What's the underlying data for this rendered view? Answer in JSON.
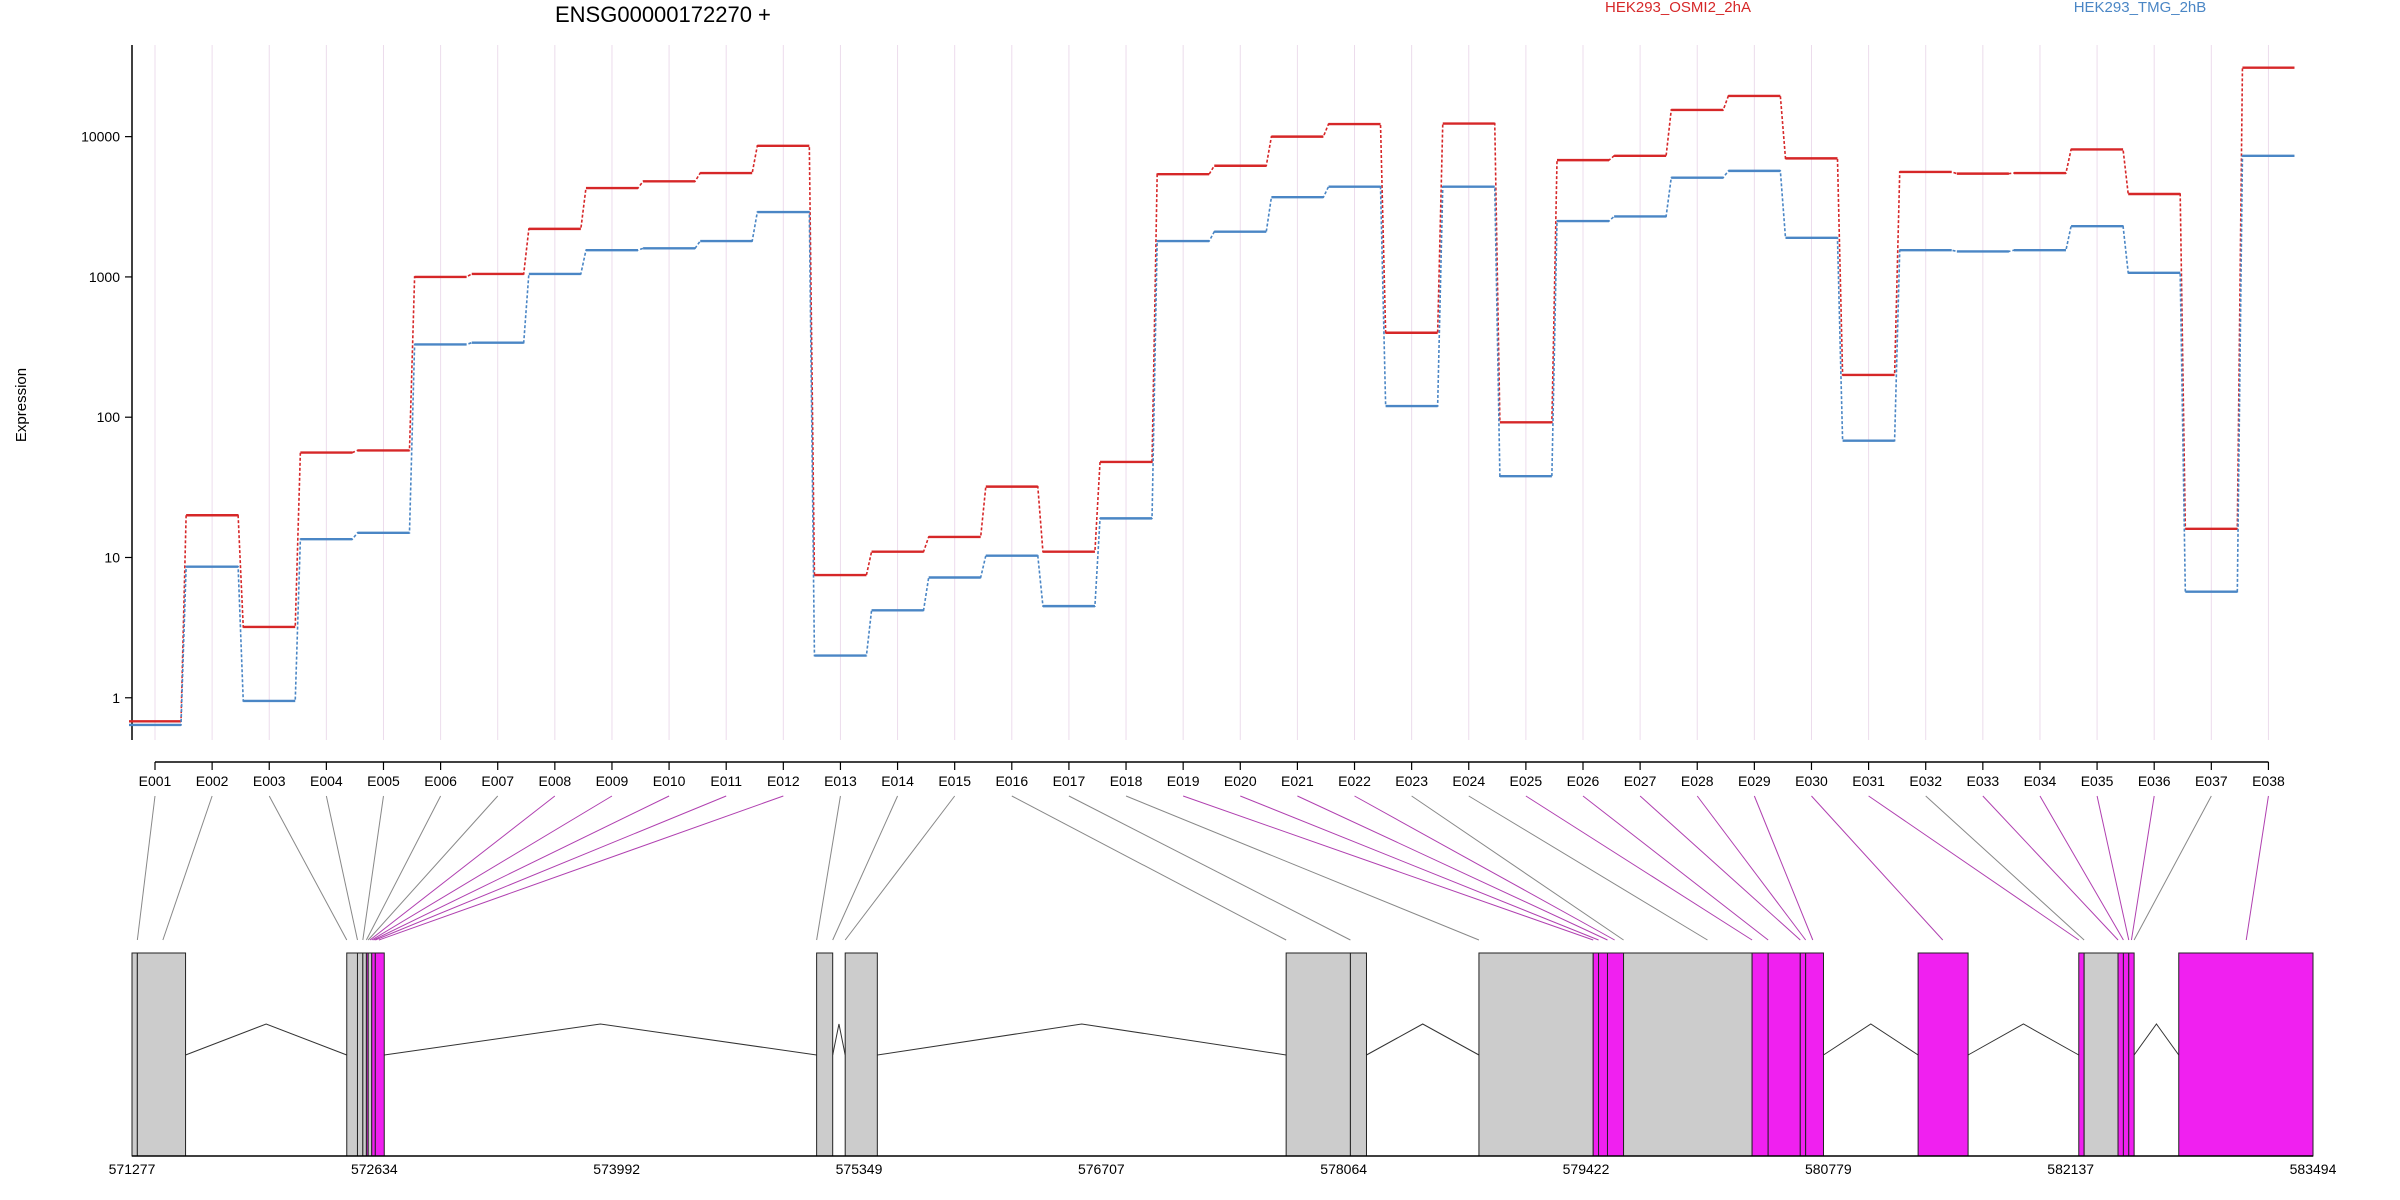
{
  "chart_data": {
    "type": "line",
    "title": "ENSG00000172270 +",
    "ylabel": "Expression",
    "yscale": "log",
    "ylim": [
      0.5,
      45000
    ],
    "yticks": [
      1,
      10,
      100,
      1000,
      10000
    ],
    "ytick_labels": [
      "1",
      "10",
      "100",
      "1000",
      "10000"
    ],
    "categories": [
      "E001",
      "E002",
      "E003",
      "E004",
      "E005",
      "E006",
      "E007",
      "E008",
      "E009",
      "E010",
      "E011",
      "E012",
      "E013",
      "E014",
      "E015",
      "E016",
      "E017",
      "E018",
      "E019",
      "E020",
      "E021",
      "E022",
      "E023",
      "E024",
      "E025",
      "E026",
      "E027",
      "E028",
      "E029",
      "E030",
      "E031",
      "E032",
      "E033",
      "E034",
      "E035",
      "E036",
      "E037",
      "E038"
    ],
    "series": [
      {
        "name": "HEK293_OSMI2_2hA",
        "color": "#d62728",
        "values": [
          0.68,
          20,
          3.2,
          56,
          58,
          1000,
          1050,
          2200,
          4300,
          4800,
          5500,
          8600,
          7.5,
          11,
          14,
          32,
          11,
          48,
          5400,
          6200,
          10000,
          12300,
          400,
          12400,
          92,
          6800,
          7300,
          15500,
          19500,
          7000,
          200,
          5600,
          5450,
          5500,
          8100,
          3900,
          16,
          31000
        ]
      },
      {
        "name": "HEK293_TMG_2hB",
        "color": "#4a86c5",
        "values": [
          0.64,
          8.6,
          0.95,
          13.5,
          15,
          330,
          340,
          1050,
          1550,
          1600,
          1800,
          2900,
          2.0,
          4.2,
          7.2,
          10.3,
          4.5,
          19,
          1800,
          2100,
          3700,
          4400,
          120,
          4400,
          38,
          2500,
          2700,
          5100,
          5700,
          1900,
          68,
          1550,
          1520,
          1550,
          2300,
          1070,
          5.7,
          7300
        ]
      }
    ],
    "gene_model": {
      "coordinate_labels": [
        "571277",
        "572634",
        "573992",
        "575349",
        "576707",
        "578064",
        "579422",
        "580779",
        "582137",
        "583494"
      ],
      "coord_range": [
        571277,
        583494
      ],
      "exon_blocks": [
        {
          "start": 571277,
          "end": 571307,
          "color": "#cccccc"
        },
        {
          "start": 571307,
          "end": 571577,
          "color": "#cccccc"
        },
        {
          "start": 572480,
          "end": 572540,
          "color": "#cccccc"
        },
        {
          "start": 572540,
          "end": 572570,
          "color": "#cccccc"
        },
        {
          "start": 572570,
          "end": 572590,
          "color": "#cccccc"
        },
        {
          "start": 572590,
          "end": 572600,
          "color": "#f020f0"
        },
        {
          "start": 572600,
          "end": 572620,
          "color": "#cccccc"
        },
        {
          "start": 572620,
          "end": 572640,
          "color": "#f020f0"
        },
        {
          "start": 572640,
          "end": 572690,
          "color": "#f020f0"
        },
        {
          "start": 575112,
          "end": 575202,
          "color": "#cccccc"
        },
        {
          "start": 575272,
          "end": 575452,
          "color": "#cccccc"
        },
        {
          "start": 577742,
          "end": 578102,
          "color": "#cccccc"
        },
        {
          "start": 578102,
          "end": 578192,
          "color": "#cccccc"
        },
        {
          "start": 578822,
          "end": 579462,
          "color": "#cccccc"
        },
        {
          "start": 579462,
          "end": 579492,
          "color": "#f020f0"
        },
        {
          "start": 579492,
          "end": 579542,
          "color": "#f020f0"
        },
        {
          "start": 579542,
          "end": 579632,
          "color": "#f020f0"
        },
        {
          "start": 579632,
          "end": 580352,
          "color": "#cccccc"
        },
        {
          "start": 580352,
          "end": 580442,
          "color": "#f020f0"
        },
        {
          "start": 580442,
          "end": 580622,
          "color": "#f020f0"
        },
        {
          "start": 580622,
          "end": 580652,
          "color": "#f020f0"
        },
        {
          "start": 580652,
          "end": 580752,
          "color": "#f020f0"
        },
        {
          "start": 581282,
          "end": 581562,
          "color": "#f020f0"
        },
        {
          "start": 582182,
          "end": 582212,
          "color": "#f020f0"
        },
        {
          "start": 582212,
          "end": 582402,
          "color": "#cccccc"
        },
        {
          "start": 582402,
          "end": 582432,
          "color": "#f020f0"
        },
        {
          "start": 582432,
          "end": 582462,
          "color": "#f020f0"
        },
        {
          "start": 582462,
          "end": 582492,
          "color": "#f020f0"
        },
        {
          "start": 582742,
          "end": 583494,
          "color": "#f020f0"
        }
      ],
      "introns": [
        [
          571577,
          572480
        ],
        [
          572690,
          575112
        ],
        [
          575202,
          575272
        ],
        [
          575452,
          577742
        ],
        [
          578192,
          578822
        ],
        [
          580752,
          581282
        ],
        [
          581562,
          582182
        ],
        [
          582492,
          582742
        ]
      ],
      "exon_links": [
        {
          "exon": "E001",
          "pos": 571307,
          "color": "#888888"
        },
        {
          "exon": "E002",
          "pos": 571450,
          "color": "#888888"
        },
        {
          "exon": "E003",
          "pos": 572480,
          "color": "#888888"
        },
        {
          "exon": "E004",
          "pos": 572540,
          "color": "#888888"
        },
        {
          "exon": "E005",
          "pos": 572570,
          "color": "#888888"
        },
        {
          "exon": "E006",
          "pos": 572590,
          "color": "#888888"
        },
        {
          "exon": "E007",
          "pos": 572600,
          "color": "#888888"
        },
        {
          "exon": "E008",
          "pos": 572610,
          "color": "#b040b0"
        },
        {
          "exon": "E009",
          "pos": 572620,
          "color": "#b040b0"
        },
        {
          "exon": "E010",
          "pos": 572630,
          "color": "#b040b0"
        },
        {
          "exon": "E011",
          "pos": 572640,
          "color": "#b040b0"
        },
        {
          "exon": "E012",
          "pos": 572660,
          "color": "#b040b0"
        },
        {
          "exon": "E013",
          "pos": 575112,
          "color": "#888888"
        },
        {
          "exon": "E014",
          "pos": 575202,
          "color": "#888888"
        },
        {
          "exon": "E015",
          "pos": 575272,
          "color": "#888888"
        },
        {
          "exon": "E016",
          "pos": 577742,
          "color": "#888888"
        },
        {
          "exon": "E017",
          "pos": 578102,
          "color": "#888888"
        },
        {
          "exon": "E018",
          "pos": 578822,
          "color": "#888888"
        },
        {
          "exon": "E019",
          "pos": 579462,
          "color": "#b040b0"
        },
        {
          "exon": "E020",
          "pos": 579492,
          "color": "#b040b0"
        },
        {
          "exon": "E021",
          "pos": 579542,
          "color": "#b040b0"
        },
        {
          "exon": "E022",
          "pos": 579582,
          "color": "#b040b0"
        },
        {
          "exon": "E023",
          "pos": 579632,
          "color": "#888888"
        },
        {
          "exon": "E024",
          "pos": 580102,
          "color": "#888888"
        },
        {
          "exon": "E025",
          "pos": 580352,
          "color": "#b040b0"
        },
        {
          "exon": "E026",
          "pos": 580442,
          "color": "#b040b0"
        },
        {
          "exon": "E027",
          "pos": 580622,
          "color": "#b040b0"
        },
        {
          "exon": "E028",
          "pos": 580652,
          "color": "#b040b0"
        },
        {
          "exon": "E029",
          "pos": 580692,
          "color": "#b040b0"
        },
        {
          "exon": "E030",
          "pos": 581420,
          "color": "#b040b0"
        },
        {
          "exon": "E031",
          "pos": 582182,
          "color": "#b040b0"
        },
        {
          "exon": "E032",
          "pos": 582212,
          "color": "#888888"
        },
        {
          "exon": "E033",
          "pos": 582402,
          "color": "#b040b0"
        },
        {
          "exon": "E034",
          "pos": 582432,
          "color": "#b040b0"
        },
        {
          "exon": "E035",
          "pos": 582462,
          "color": "#b040b0"
        },
        {
          "exon": "E036",
          "pos": 582477,
          "color": "#b040b0"
        },
        {
          "exon": "E037",
          "pos": 582492,
          "color": "#888888"
        },
        {
          "exon": "E038",
          "pos": 583120,
          "color": "#b040b0"
        }
      ]
    }
  }
}
